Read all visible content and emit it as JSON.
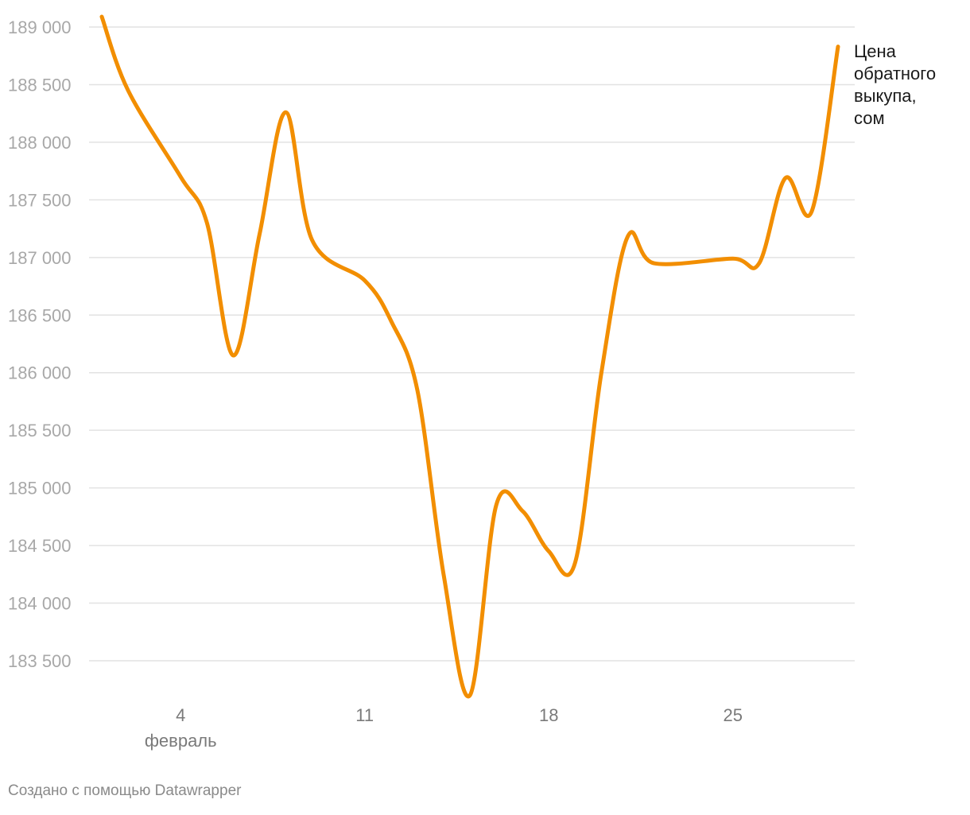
{
  "chart_data": {
    "type": "line",
    "title": "",
    "xlabel": "",
    "ylabel": "",
    "x_unit": "day of February",
    "x_ticks": [
      {
        "value": 4,
        "label": "4",
        "sublabel": "февраль"
      },
      {
        "value": 11,
        "label": "11",
        "sublabel": ""
      },
      {
        "value": 18,
        "label": "18",
        "sublabel": ""
      },
      {
        "value": 25,
        "label": "25",
        "sublabel": ""
      }
    ],
    "y_ticks": [
      {
        "value": 189000,
        "label": "189 000"
      },
      {
        "value": 188500,
        "label": "188 500"
      },
      {
        "value": 188000,
        "label": "188 000"
      },
      {
        "value": 187500,
        "label": "187 500"
      },
      {
        "value": 187000,
        "label": "187 000"
      },
      {
        "value": 186500,
        "label": "186 500"
      },
      {
        "value": 186000,
        "label": "186 000"
      },
      {
        "value": 185500,
        "label": "185 500"
      },
      {
        "value": 185000,
        "label": "185 000"
      },
      {
        "value": 184500,
        "label": "184 500"
      },
      {
        "value": 184000,
        "label": "184 000"
      },
      {
        "value": 183500,
        "label": "183 500"
      }
    ],
    "xlim": [
      1,
      30
    ],
    "ylim": [
      183200,
      189100
    ],
    "grid": true,
    "legend": "none",
    "series": [
      {
        "name": "Цена обратного выкупа, сом",
        "color": "#f28e00",
        "points": [
          {
            "x": 1,
            "y": 189090
          },
          {
            "x": 2,
            "y": 188450
          },
          {
            "x": 4,
            "y": 187700
          },
          {
            "x": 5,
            "y": 187300
          },
          {
            "x": 6,
            "y": 186150
          },
          {
            "x": 7,
            "y": 187200
          },
          {
            "x": 8,
            "y": 188260
          },
          {
            "x": 9,
            "y": 187150
          },
          {
            "x": 11,
            "y": 186800
          },
          {
            "x": 12,
            "y": 186450
          },
          {
            "x": 13,
            "y": 185850
          },
          {
            "x": 14,
            "y": 184250
          },
          {
            "x": 15,
            "y": 183200
          },
          {
            "x": 16,
            "y": 184850
          },
          {
            "x": 17,
            "y": 184800
          },
          {
            "x": 18,
            "y": 184450
          },
          {
            "x": 19,
            "y": 184350
          },
          {
            "x": 20,
            "y": 186000
          },
          {
            "x": 21,
            "y": 187180
          },
          {
            "x": 22,
            "y": 186950
          },
          {
            "x": 25,
            "y": 186990
          },
          {
            "x": 26,
            "y": 186950
          },
          {
            "x": 27,
            "y": 187690
          },
          {
            "x": 28,
            "y": 187400
          },
          {
            "x": 29,
            "y": 188830
          }
        ]
      }
    ],
    "series_label_lines": [
      "Цена",
      "обратного",
      "выкупа,",
      "сом"
    ]
  },
  "footer": {
    "credit": "Создано с помощью Datawrapper"
  }
}
